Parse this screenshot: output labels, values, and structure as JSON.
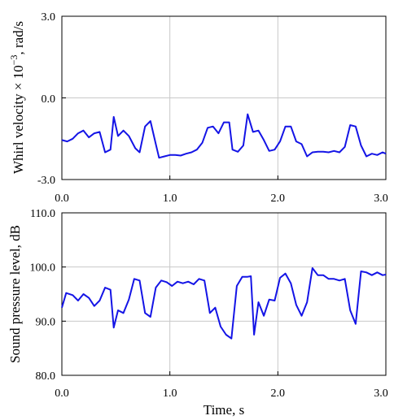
{
  "colors": {
    "line": "#1414e6",
    "grid": "#c8c8c8",
    "axis": "#000000"
  },
  "xlabel": "Time, s",
  "chart_data": [
    {
      "type": "line",
      "ylabel_main": "Whirl velocity × 10",
      "ylabel_exp": "−3",
      "ylabel_unit": ", rad/s",
      "xlim": [
        0,
        3
      ],
      "ylim": [
        -3,
        3
      ],
      "xticks": [
        0,
        1,
        2,
        3
      ],
      "xtick_labels": [
        "0.0",
        "1.0",
        "2.0",
        "3.0"
      ],
      "yticks": [
        3,
        0,
        -3
      ],
      "ytick_labels": [
        "3.0",
        "0.0",
        "-3.0"
      ],
      "grid": true,
      "series": [
        {
          "x": [
            0.0,
            0.05,
            0.1,
            0.15,
            0.2,
            0.25,
            0.3,
            0.35,
            0.4,
            0.45,
            0.48,
            0.52,
            0.57,
            0.62,
            0.68,
            0.72,
            0.77,
            0.82,
            0.87,
            0.9,
            0.95,
            1.0,
            1.05,
            1.1,
            1.15,
            1.2,
            1.25,
            1.3,
            1.35,
            1.4,
            1.45,
            1.5,
            1.55,
            1.58,
            1.63,
            1.68,
            1.72,
            1.77,
            1.82,
            1.87,
            1.92,
            1.97,
            2.02,
            2.07,
            2.12,
            2.17,
            2.22,
            2.27,
            2.32,
            2.37,
            2.42,
            2.47,
            2.52,
            2.57,
            2.62,
            2.67,
            2.72,
            2.77,
            2.82,
            2.87,
            2.92,
            2.97,
            3.0
          ],
          "values": [
            -1.55,
            -1.6,
            -1.5,
            -1.3,
            -1.2,
            -1.45,
            -1.3,
            -1.25,
            -2.0,
            -1.9,
            -0.7,
            -1.4,
            -1.2,
            -1.4,
            -1.85,
            -2.0,
            -1.05,
            -0.85,
            -1.7,
            -2.2,
            -2.15,
            -2.1,
            -2.1,
            -2.12,
            -2.05,
            -2.0,
            -1.9,
            -1.65,
            -1.1,
            -1.05,
            -1.3,
            -0.9,
            -0.9,
            -1.9,
            -1.98,
            -1.75,
            -0.6,
            -1.25,
            -1.2,
            -1.55,
            -1.95,
            -1.9,
            -1.6,
            -1.05,
            -1.05,
            -1.6,
            -1.7,
            -2.15,
            -2.0,
            -1.98,
            -1.98,
            -2.0,
            -1.95,
            -2.0,
            -1.8,
            -1.0,
            -1.05,
            -1.75,
            -2.15,
            -2.05,
            -2.1,
            -2.0,
            -2.05
          ]
        }
      ]
    },
    {
      "type": "line",
      "ylabel": "Sound pressure level, dB",
      "xlim": [
        0,
        3
      ],
      "ylim": [
        80,
        110
      ],
      "xticks": [
        0,
        1,
        2,
        3
      ],
      "xtick_labels": [
        "0.0",
        "1.0",
        "2.0",
        "3.0"
      ],
      "yticks": [
        110,
        100,
        90,
        80
      ],
      "ytick_labels": [
        "110.0",
        "100.0",
        "90.0",
        "80.0"
      ],
      "grid": true,
      "series": [
        {
          "x": [
            0.0,
            0.04,
            0.1,
            0.15,
            0.2,
            0.25,
            0.3,
            0.35,
            0.4,
            0.45,
            0.48,
            0.52,
            0.57,
            0.62,
            0.67,
            0.72,
            0.77,
            0.82,
            0.87,
            0.92,
            0.97,
            1.02,
            1.07,
            1.12,
            1.17,
            1.22,
            1.27,
            1.32,
            1.37,
            1.42,
            1.47,
            1.52,
            1.57,
            1.62,
            1.67,
            1.72,
            1.75,
            1.78,
            1.82,
            1.87,
            1.92,
            1.97,
            2.02,
            2.07,
            2.12,
            2.17,
            2.22,
            2.27,
            2.32,
            2.37,
            2.42,
            2.47,
            2.52,
            2.57,
            2.62,
            2.67,
            2.72,
            2.77,
            2.82,
            2.87,
            2.92,
            2.97,
            3.0
          ],
          "values": [
            92.5,
            95.2,
            94.8,
            93.8,
            95.0,
            94.3,
            92.8,
            93.8,
            96.2,
            95.8,
            88.8,
            92.0,
            91.5,
            94.0,
            97.8,
            97.5,
            91.5,
            90.8,
            96.2,
            97.5,
            97.2,
            96.5,
            97.3,
            97.0,
            97.3,
            96.8,
            97.8,
            97.5,
            91.5,
            92.5,
            89.0,
            87.5,
            86.8,
            96.5,
            98.2,
            98.2,
            98.3,
            87.5,
            93.5,
            91.0,
            94.0,
            93.8,
            98.0,
            98.8,
            97.0,
            93.0,
            91.0,
            93.5,
            99.8,
            98.5,
            98.5,
            97.8,
            97.8,
            97.5,
            97.8,
            92.0,
            89.5,
            99.2,
            99.0,
            98.5,
            99.0,
            98.5,
            98.6
          ]
        }
      ]
    }
  ]
}
